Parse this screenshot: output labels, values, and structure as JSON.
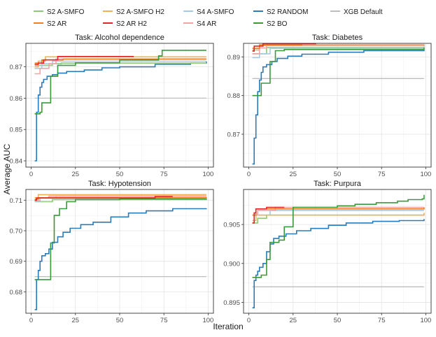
{
  "colors": {
    "S2 A-SMFO": "#8cc97a",
    "S2 A-SMFO H2": "#f2b04f",
    "S4 A-SMFO": "#a6cbe8",
    "S2 RANDOM": "#2b7bb9",
    "XGB Default": "#bdbdbd",
    "S2 AR": "#f07f22",
    "S2 AR H2": "#e0272c",
    "S4 AR": "#f4a3a8",
    "S2 BO": "#3a9a3a"
  },
  "legend_row1": [
    "S2 A-SMFO",
    "S2 A-SMFO H2",
    "S4 A-SMFO",
    "S2 RANDOM",
    "XGB Default"
  ],
  "legend_row2": [
    "S2 AR",
    "S2 AR H2",
    "S4 AR",
    "S2 BO"
  ],
  "ylabel": "Average AUC",
  "xlabel": "Iteration",
  "chart_data": [
    {
      "type": "line",
      "title": "Task: Alcohol dependence",
      "xlim": [
        -3,
        103
      ],
      "ylim": [
        0.838,
        0.8775
      ],
      "xticks": [
        0,
        25,
        50,
        75,
        100
      ],
      "yticks": [
        0.84,
        0.85,
        0.86,
        0.87
      ],
      "ytick_labels": [
        "0.84",
        "0.85",
        "0.86",
        "0.87"
      ],
      "series": [
        {
          "name": "XGB Default",
          "points": [
            [
              2,
              0.86
            ],
            [
              99,
              0.86
            ]
          ]
        },
        {
          "name": "S2 RANDOM",
          "points": [
            [
              2,
              0.84
            ],
            [
              3,
              0.8555
            ],
            [
              4,
              0.861
            ],
            [
              5,
              0.8635
            ],
            [
              6,
              0.865
            ],
            [
              7,
              0.866
            ],
            [
              9,
              0.867
            ],
            [
              12,
              0.8675
            ],
            [
              15,
              0.868
            ],
            [
              20,
              0.8685
            ],
            [
              30,
              0.869
            ],
            [
              40,
              0.8697
            ],
            [
              50,
              0.87
            ],
            [
              70,
              0.8708
            ],
            [
              90,
              0.8712
            ],
            [
              96,
              0.8712
            ],
            [
              99,
              0.8717
            ]
          ]
        },
        {
          "name": "S2 BO",
          "points": [
            [
              2,
              0.855
            ],
            [
              5,
              0.8555
            ],
            [
              6,
              0.8585
            ],
            [
              10,
              0.8585
            ],
            [
              11,
              0.867
            ],
            [
              15,
              0.8705
            ],
            [
              25,
              0.8713
            ],
            [
              50,
              0.8722
            ],
            [
              72,
              0.8735
            ],
            [
              74,
              0.8753
            ],
            [
              99,
              0.8753
            ]
          ]
        },
        {
          "name": "S2 A-SMFO",
          "points": [
            [
              2,
              0.8705
            ],
            [
              12,
              0.871
            ],
            [
              17,
              0.8712
            ],
            [
              26,
              0.8712
            ],
            [
              99,
              0.8712
            ]
          ]
        },
        {
          "name": "S2 A-SMFO H2",
          "points": [
            [
              2,
              0.87
            ],
            [
              4,
              0.8718
            ],
            [
              8,
              0.8732
            ],
            [
              99,
              0.8732
            ]
          ]
        },
        {
          "name": "S4 A-SMFO",
          "points": [
            [
              2,
              0.8695
            ],
            [
              6,
              0.871
            ],
            [
              12,
              0.8718
            ],
            [
              99,
              0.8718
            ]
          ]
        },
        {
          "name": "S4 AR",
          "points": [
            [
              2,
              0.8678
            ],
            [
              5,
              0.8695
            ],
            [
              10,
              0.871
            ],
            [
              14,
              0.8725
            ],
            [
              99,
              0.8725
            ]
          ]
        },
        {
          "name": "S2 AR",
          "points": [
            [
              2,
              0.8712
            ],
            [
              6,
              0.8722
            ],
            [
              18,
              0.8725
            ],
            [
              99,
              0.8725
            ]
          ]
        },
        {
          "name": "S2 AR H2",
          "points": [
            [
              2,
              0.8708
            ],
            [
              4,
              0.8712
            ],
            [
              7,
              0.8722
            ],
            [
              15,
              0.8733
            ],
            [
              58,
              0.8733
            ]
          ]
        }
      ]
    },
    {
      "type": "line",
      "title": "Task: Diabetes",
      "xlim": [
        -3,
        103
      ],
      "ylim": [
        0.8615,
        0.8935
      ],
      "xticks": [
        0,
        25,
        50,
        75,
        100
      ],
      "yticks": [
        0.87,
        0.88,
        0.89
      ],
      "ytick_labels": [
        "0.87",
        "0.88",
        "0.89"
      ],
      "series": [
        {
          "name": "XGB Default",
          "points": [
            [
              2,
              0.8844
            ],
            [
              99,
              0.8844
            ]
          ]
        },
        {
          "name": "S2 RANDOM",
          "points": [
            [
              2,
              0.8623
            ],
            [
              3,
              0.869
            ],
            [
              4,
              0.875
            ],
            [
              5,
              0.881
            ],
            [
              6,
              0.884
            ],
            [
              7,
              0.886
            ],
            [
              8,
              0.8874
            ],
            [
              10,
              0.888
            ],
            [
              13,
              0.8888
            ],
            [
              16,
              0.8896
            ],
            [
              22,
              0.8902
            ],
            [
              30,
              0.8907
            ],
            [
              45,
              0.8912
            ],
            [
              65,
              0.8916
            ],
            [
              99,
              0.8918
            ]
          ]
        },
        {
          "name": "S2 BO",
          "points": [
            [
              2,
              0.88
            ],
            [
              7,
              0.8832
            ],
            [
              12,
              0.8888
            ],
            [
              15,
              0.8916
            ],
            [
              20,
              0.8919
            ],
            [
              99,
              0.8924
            ]
          ]
        },
        {
          "name": "S2 A-SMFO",
          "points": [
            [
              2,
              0.8908
            ],
            [
              10,
              0.8924
            ],
            [
              99,
              0.8926
            ]
          ]
        },
        {
          "name": "S2 A-SMFO H2",
          "points": [
            [
              2,
              0.8918
            ],
            [
              6,
              0.8929
            ],
            [
              99,
              0.8931
            ]
          ]
        },
        {
          "name": "S4 A-SMFO",
          "points": [
            [
              2,
              0.8898
            ],
            [
              6,
              0.8908
            ],
            [
              12,
              0.8922
            ],
            [
              99,
              0.8933
            ]
          ]
        },
        {
          "name": "S4 AR",
          "points": [
            [
              2,
              0.8908
            ],
            [
              6,
              0.8923
            ],
            [
              10,
              0.8932
            ],
            [
              99,
              0.8933
            ]
          ]
        },
        {
          "name": "S2 AR",
          "points": [
            [
              2,
              0.8922
            ],
            [
              6,
              0.8931
            ],
            [
              30,
              0.8934
            ],
            [
              38,
              0.8934
            ]
          ]
        },
        {
          "name": "S2 AR H2",
          "points": [
            [
              2,
              0.8915
            ],
            [
              3,
              0.8928
            ],
            [
              8,
              0.8934
            ],
            [
              38,
              0.8934
            ]
          ]
        }
      ]
    },
    {
      "type": "line",
      "title": "Task: Hypotension",
      "xlim": [
        -3,
        103
      ],
      "ylim": [
        0.673,
        0.7135
      ],
      "xticks": [
        0,
        25,
        50,
        75,
        100
      ],
      "yticks": [
        0.68,
        0.69,
        0.7,
        0.71
      ],
      "ytick_labels": [
        "0.68",
        "0.69",
        "0.70",
        "0.71"
      ],
      "series": [
        {
          "name": "XGB Default",
          "points": [
            [
              2,
              0.685
            ],
            [
              99,
              0.685
            ]
          ]
        },
        {
          "name": "S2 RANDOM",
          "points": [
            [
              2,
              0.6742
            ],
            [
              3,
              0.684
            ],
            [
              4,
              0.687
            ],
            [
              5,
              0.69
            ],
            [
              6,
              0.6918
            ],
            [
              8,
              0.6925
            ],
            [
              10,
              0.694
            ],
            [
              12,
              0.6962
            ],
            [
              15,
              0.698
            ],
            [
              18,
              0.6995
            ],
            [
              22,
              0.7008
            ],
            [
              28,
              0.702
            ],
            [
              35,
              0.7028
            ],
            [
              45,
              0.7045
            ],
            [
              55,
              0.7058
            ],
            [
              65,
              0.7065
            ],
            [
              80,
              0.7072
            ],
            [
              99,
              0.7073
            ]
          ]
        },
        {
          "name": "S2 BO",
          "points": [
            [
              2,
              0.684
            ],
            [
              10,
              0.684
            ],
            [
              11,
              0.696
            ],
            [
              13,
              0.705
            ],
            [
              16,
              0.7072
            ],
            [
              20,
              0.7095
            ],
            [
              25,
              0.7102
            ],
            [
              50,
              0.7104
            ],
            [
              99,
              0.7105
            ]
          ]
        },
        {
          "name": "S2 A-SMFO",
          "points": [
            [
              2,
              0.7095
            ],
            [
              12,
              0.7102
            ],
            [
              99,
              0.7105
            ]
          ]
        },
        {
          "name": "S2 A-SMFO H2",
          "points": [
            [
              2,
              0.7108
            ],
            [
              4,
              0.7118
            ],
            [
              99,
              0.7118
            ]
          ]
        },
        {
          "name": "S4 A-SMFO",
          "points": [
            [
              2,
              0.7096
            ],
            [
              5,
              0.7108
            ],
            [
              14,
              0.7113
            ],
            [
              99,
              0.7113
            ]
          ]
        },
        {
          "name": "S4 AR",
          "points": [
            [
              2,
              0.7098
            ],
            [
              5,
              0.7108
            ],
            [
              10,
              0.7113
            ],
            [
              99,
              0.7113
            ]
          ]
        },
        {
          "name": "S2 AR",
          "points": [
            [
              2,
              0.7103
            ],
            [
              4,
              0.7108
            ],
            [
              99,
              0.711
            ]
          ]
        },
        {
          "name": "S2 AR H2",
          "points": [
            [
              2,
              0.71
            ],
            [
              3,
              0.7107
            ],
            [
              70,
              0.7112
            ],
            [
              80,
              0.7112
            ]
          ]
        }
      ]
    },
    {
      "type": "line",
      "title": "Task: Purpura",
      "xlim": [
        -3,
        103
      ],
      "ylim": [
        0.8936,
        0.9095
      ],
      "xticks": [
        0,
        25,
        50,
        75,
        100
      ],
      "yticks": [
        0.895,
        0.9,
        0.905
      ],
      "ytick_labels": [
        "0.895",
        "0.900",
        "0.905"
      ],
      "series": [
        {
          "name": "XGB Default",
          "points": [
            [
              2,
              0.897
            ],
            [
              99,
              0.897
            ]
          ]
        },
        {
          "name": "S2 RANDOM",
          "points": [
            [
              2,
              0.8943
            ],
            [
              3,
              0.8978
            ],
            [
              4,
              0.8985
            ],
            [
              5,
              0.899
            ],
            [
              6,
              0.8995
            ],
            [
              8,
              0.9
            ],
            [
              10,
              0.9015
            ],
            [
              12,
              0.9025
            ],
            [
              14,
              0.9032
            ],
            [
              17,
              0.9035
            ],
            [
              21,
              0.9038
            ],
            [
              27,
              0.9042
            ],
            [
              35,
              0.9045
            ],
            [
              45,
              0.9049
            ],
            [
              55,
              0.9052
            ],
            [
              70,
              0.9054
            ],
            [
              85,
              0.9055
            ],
            [
              99,
              0.9057
            ]
          ]
        },
        {
          "name": "S2 BO",
          "points": [
            [
              2,
              0.8982
            ],
            [
              7,
              0.8985
            ],
            [
              10,
              0.9005
            ],
            [
              12,
              0.9027
            ],
            [
              17,
              0.903
            ],
            [
              20,
              0.9047
            ],
            [
              25,
              0.9072
            ],
            [
              50,
              0.9074
            ],
            [
              60,
              0.9076
            ],
            [
              72,
              0.9078
            ],
            [
              84,
              0.908
            ],
            [
              90,
              0.9082
            ],
            [
              98,
              0.9083
            ],
            [
              99,
              0.9088
            ]
          ]
        },
        {
          "name": "S2 A-SMFO",
          "points": [
            [
              2,
              0.9052
            ],
            [
              5,
              0.9058
            ],
            [
              10,
              0.9062
            ],
            [
              99,
              0.9063
            ]
          ]
        },
        {
          "name": "S2 A-SMFO H2",
          "points": [
            [
              2,
              0.9055
            ],
            [
              4,
              0.9062
            ],
            [
              99,
              0.9065
            ]
          ]
        },
        {
          "name": "S4 A-SMFO",
          "points": [
            [
              2,
              0.9062
            ],
            [
              12,
              0.9068
            ],
            [
              99,
              0.9068
            ]
          ]
        },
        {
          "name": "S4 AR",
          "points": [
            [
              2,
              0.9062
            ],
            [
              5,
              0.9068
            ],
            [
              15,
              0.9072
            ],
            [
              99,
              0.9072
            ]
          ]
        },
        {
          "name": "S2 AR",
          "points": [
            [
              2,
              0.9062
            ],
            [
              4,
              0.907
            ],
            [
              99,
              0.9072
            ]
          ]
        },
        {
          "name": "S2 AR H2",
          "points": [
            [
              2,
              0.9052
            ],
            [
              3,
              0.9065
            ],
            [
              4,
              0.907
            ],
            [
              10,
              0.9072
            ],
            [
              20,
              0.9072
            ]
          ]
        }
      ]
    }
  ]
}
